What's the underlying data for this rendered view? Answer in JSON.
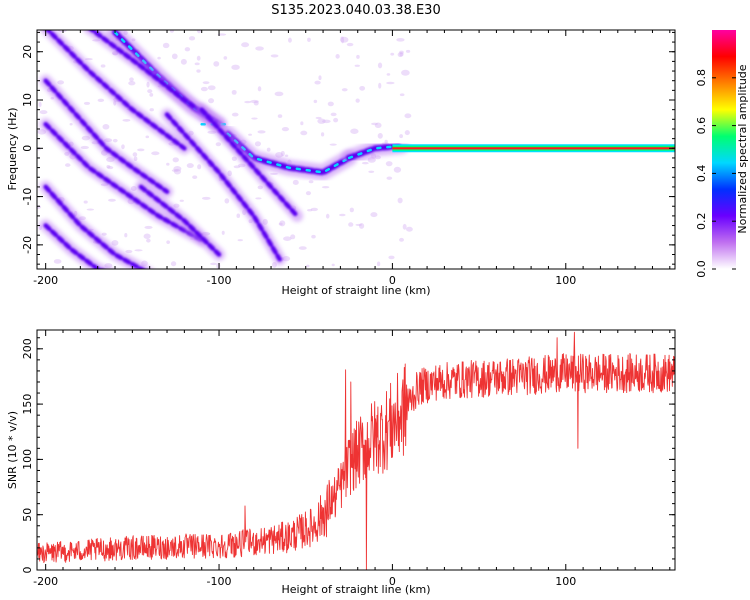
{
  "title": "S135.2023.040.03.38.E30",
  "chart_data": [
    {
      "type": "heatmap",
      "xlabel": "Height of straight line (km)",
      "ylabel": "Frequency (Hz)",
      "xlim": [
        -205,
        163
      ],
      "ylim": [
        -25,
        24.5
      ],
      "xticks": [
        -200,
        -100,
        0,
        100
      ],
      "yticks": [
        -20,
        -10,
        0,
        10,
        20
      ],
      "colorbar": {
        "label": "Normalized spectral amplitude",
        "range": [
          0,
          1
        ],
        "ticks": [
          0.0,
          0.2,
          0.4,
          0.6,
          0.8
        ],
        "stops": [
          "#ffffff",
          "#c070f0",
          "#6a00ff",
          "#0030ff",
          "#00d8ff",
          "#00ff70",
          "#ffff00",
          "#ff8000",
          "#ff0000",
          "#ff00a0"
        ]
      },
      "ridges": [
        {
          "segment": "main-sweep",
          "x": [
            -160,
            -135,
            -115,
            -100
          ],
          "y": [
            24,
            15,
            8.5,
            5
          ]
        },
        {
          "segment": "main-flat",
          "x": [
            -110,
            -95
          ],
          "y": [
            5,
            5
          ]
        },
        {
          "segment": "main-descend",
          "x": [
            -95,
            -80,
            -60,
            -40,
            -25
          ],
          "y": [
            3,
            -2,
            -4,
            -5,
            -2
          ]
        },
        {
          "segment": "main-rise",
          "x": [
            -25,
            -10,
            5
          ],
          "y": [
            -2,
            0,
            0.5
          ]
        },
        {
          "segment": "carrier",
          "x": [
            0,
            163
          ],
          "y": [
            0,
            0
          ]
        },
        {
          "segment": "alias-1",
          "x": [
            -200,
            -175,
            -150,
            -120
          ],
          "y": [
            25,
            16,
            8,
            0
          ]
        },
        {
          "segment": "alias-2",
          "x": [
            -200,
            -180,
            -165,
            -150,
            -130
          ],
          "y": [
            14,
            6,
            0,
            -4,
            -9
          ]
        },
        {
          "segment": "alias-3",
          "x": [
            -200,
            -175,
            -155,
            -135,
            -110
          ],
          "y": [
            5,
            -4,
            -9,
            -14,
            -19
          ]
        },
        {
          "segment": "alias-4",
          "x": [
            -200,
            -180,
            -160,
            -140
          ],
          "y": [
            -8,
            -16,
            -22,
            -26
          ]
        },
        {
          "segment": "alias-5",
          "x": [
            -200,
            -185,
            -170,
            -155
          ],
          "y": [
            -16,
            -21,
            -25,
            -27
          ]
        },
        {
          "segment": "alias-6",
          "x": [
            -175,
            -145,
            -120,
            -100
          ],
          "y": [
            25,
            17,
            10,
            5
          ]
        },
        {
          "segment": "alias-7",
          "x": [
            -130,
            -100,
            -80,
            -65
          ],
          "y": [
            7,
            -5,
            -14,
            -23
          ]
        },
        {
          "segment": "alias-8",
          "x": [
            -110,
            -90,
            -70,
            -55
          ],
          "y": [
            8,
            0,
            -8,
            -14
          ]
        },
        {
          "segment": "alias-9",
          "x": [
            -145,
            -120,
            -100
          ],
          "y": [
            -8,
            -15,
            -22
          ]
        }
      ]
    },
    {
      "type": "line",
      "xlabel": "Height of straight line (km)",
      "ylabel": "SNR (10 * v/v)",
      "xlim": [
        -205,
        163
      ],
      "ylim": [
        0,
        217
      ],
      "xticks": [
        -200,
        -100,
        0,
        100
      ],
      "yticks": [
        0,
        50,
        100,
        150,
        200
      ],
      "color": "#ee3333",
      "trend": {
        "x": [
          -205,
          -150,
          -100,
          -80,
          -60,
          -45,
          -38,
          -30,
          -25,
          -15,
          -5,
          5,
          15,
          25,
          40,
          70,
          100,
          130,
          163
        ],
        "y": [
          15,
          20,
          22,
          25,
          30,
          40,
          55,
          75,
          95,
          115,
          125,
          140,
          165,
          170,
          172,
          175,
          178,
          178,
          178
        ]
      },
      "spikes": [
        {
          "x": -85,
          "y": 58
        },
        {
          "x": -38,
          "y": 30
        },
        {
          "x": -33,
          "y": 48
        },
        {
          "x": -27,
          "y": 181
        },
        {
          "x": -24,
          "y": 170
        },
        {
          "x": -15,
          "y": 0
        },
        {
          "x": 95,
          "y": 210
        },
        {
          "x": 105,
          "y": 215
        },
        {
          "x": 107,
          "y": 110
        }
      ]
    }
  ]
}
